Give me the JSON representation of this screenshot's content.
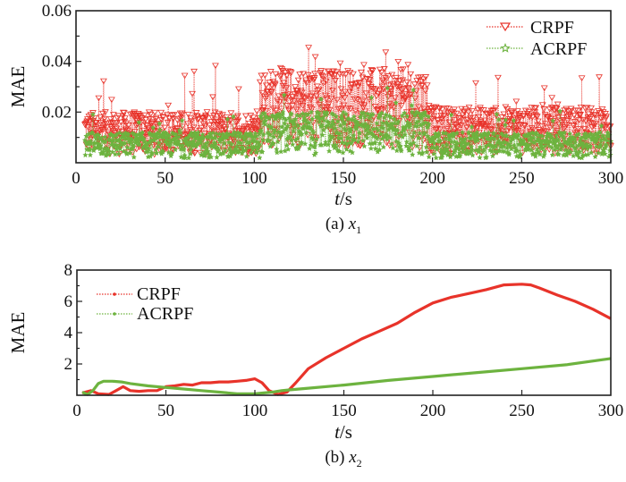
{
  "colors": {
    "crpf": "#e8332a",
    "acrpf": "#6db33f",
    "axis": "#222222"
  },
  "chart_data": [
    {
      "type": "scatter",
      "panel": "a",
      "caption_prefix": "(a) ",
      "caption_var": "x",
      "caption_sub": "1",
      "xlabel_italic": "t",
      "xlabel_rest": "/s",
      "ylabel": "MAE",
      "xlim": [
        0,
        300
      ],
      "ylim": [
        0,
        0.06
      ],
      "xticks": [
        0,
        50,
        100,
        150,
        200,
        250,
        300
      ],
      "xtick_labels": [
        "0",
        "50",
        "100",
        "150",
        "200",
        "250",
        "300"
      ],
      "yticks": [
        0.02,
        0.04,
        0.06
      ],
      "ytick_labels": [
        "0.02",
        "0.04",
        "0.06"
      ],
      "legend_position": "top-right",
      "series": [
        {
          "name": "CRPF",
          "marker": "triangle-down",
          "line": "dotted",
          "segments": [
            {
              "x_range": [
                5,
                103
              ],
              "typical_max": 0.02,
              "peak_max": 0.039,
              "min": 0.0
            },
            {
              "x_range": [
                103,
                198
              ],
              "typical_max": 0.037,
              "peak_max": 0.046,
              "min": 0.0
            },
            {
              "x_range": [
                198,
                300
              ],
              "typical_max": 0.022,
              "peak_max": 0.038,
              "min": 0.0
            }
          ]
        },
        {
          "name": "ACRPF",
          "marker": "star",
          "line": "dotted",
          "segments": [
            {
              "x_range": [
                5,
                103
              ],
              "typical_max": 0.012,
              "peak_max": 0.02,
              "min": 0.0
            },
            {
              "x_range": [
                103,
                198
              ],
              "typical_max": 0.02,
              "peak_max": 0.03,
              "min": 0.002
            },
            {
              "x_range": [
                198,
                300
              ],
              "typical_max": 0.012,
              "peak_max": 0.022,
              "min": 0.0
            }
          ]
        }
      ]
    },
    {
      "type": "line",
      "panel": "b",
      "caption_prefix": "(b) ",
      "caption_var": "x",
      "caption_sub": "2",
      "xlabel_italic": "t",
      "xlabel_rest": "/s",
      "ylabel": "MAE",
      "xlim": [
        0,
        300
      ],
      "ylim": [
        0,
        8
      ],
      "xticks": [
        0,
        50,
        100,
        150,
        200,
        250,
        300
      ],
      "xtick_labels": [
        "0",
        "50",
        "100",
        "150",
        "200",
        "250",
        "300"
      ],
      "yticks": [
        2,
        4,
        6,
        8
      ],
      "ytick_labels": [
        "2",
        "4",
        "6",
        "8"
      ],
      "legend_position": "top-left",
      "series": [
        {
          "name": "CRPF",
          "x": [
            3,
            8,
            12,
            18,
            22,
            26,
            30,
            35,
            40,
            45,
            50,
            55,
            60,
            65,
            70,
            75,
            80,
            85,
            90,
            95,
            100,
            104,
            108,
            113,
            118,
            123,
            130,
            140,
            150,
            160,
            170,
            180,
            190,
            200,
            210,
            220,
            230,
            240,
            250,
            255,
            260,
            270,
            280,
            290,
            300
          ],
          "values": [
            0.15,
            0.3,
            0.1,
            0.05,
            0.3,
            0.55,
            0.3,
            0.25,
            0.3,
            0.3,
            0.55,
            0.6,
            0.7,
            0.65,
            0.8,
            0.8,
            0.85,
            0.85,
            0.9,
            0.95,
            1.05,
            0.8,
            0.3,
            0.05,
            0.2,
            0.8,
            1.7,
            2.4,
            3.0,
            3.6,
            4.1,
            4.6,
            5.3,
            5.9,
            6.25,
            6.5,
            6.75,
            7.05,
            7.1,
            7.05,
            6.85,
            6.4,
            6.0,
            5.5,
            4.9
          ]
        },
        {
          "name": "ACRPF",
          "x": [
            3,
            6,
            9,
            12,
            15,
            20,
            25,
            30,
            40,
            50,
            60,
            70,
            80,
            90,
            95,
            100,
            105,
            110,
            115,
            120,
            130,
            150,
            175,
            200,
            225,
            250,
            275,
            300
          ],
          "values": [
            0.2,
            0.05,
            0.3,
            0.75,
            0.9,
            0.9,
            0.85,
            0.75,
            0.6,
            0.5,
            0.4,
            0.3,
            0.2,
            0.1,
            0.1,
            0.1,
            0.15,
            0.2,
            0.3,
            0.35,
            0.45,
            0.65,
            0.95,
            1.2,
            1.45,
            1.7,
            1.95,
            2.35
          ]
        }
      ]
    }
  ]
}
